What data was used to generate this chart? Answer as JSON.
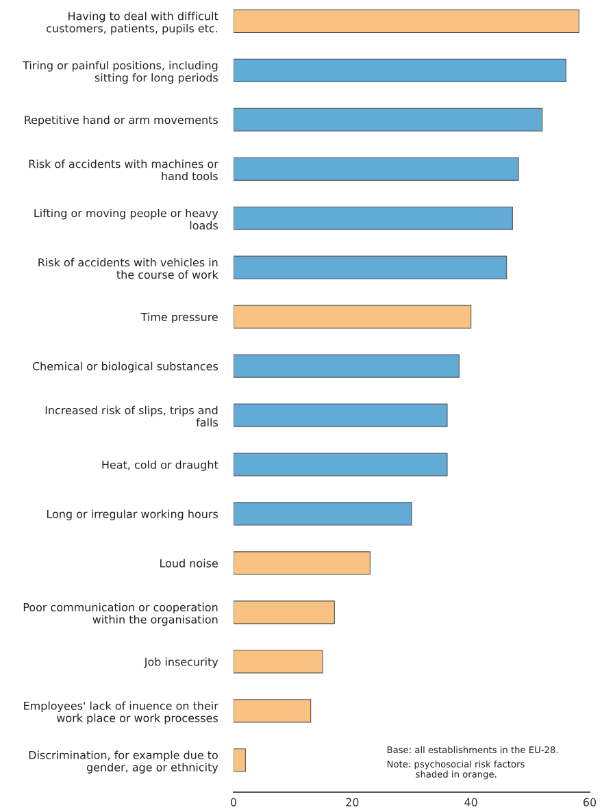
{
  "chart_data": {
    "type": "bar",
    "orientation": "horizontal",
    "categories": [
      "Having to deal with difficult\ncustomers, patients, pupils etc.",
      "Tiring or painful positions, including\nsitting for long periods",
      "Repetitive hand or arm movements",
      "Risk of accidents with machines or\nhand tools",
      "Lifting or moving people or heavy\nloads",
      "Risk of accidents with vehicles in\nthe course of work",
      "Time pressure",
      "Chemical or biological substances",
      "Increased risk of slips, trips and\nfalls",
      "Heat, cold or draught",
      "Long or irregular working hours",
      "Loud noise",
      "Poor communication or cooperation\nwithin the organisation",
      "Job insecurity",
      "Employees' lack of inuence on their\nwork place or work processes",
      "Discrimination, for example due to\ngender, age or ethnicity"
    ],
    "values": [
      58.2,
      56,
      52,
      48,
      47,
      46,
      40,
      38,
      36,
      36,
      30,
      23,
      17,
      15,
      13,
      2
    ],
    "colors": [
      "#f8c382",
      "#62abd7",
      "#62abd7",
      "#62abd7",
      "#62abd7",
      "#62abd7",
      "#f8c382",
      "#62abd7",
      "#62abd7",
      "#62abd7",
      "#62abd7",
      "#f8c382",
      "#f8c382",
      "#f8c382",
      "#f8c382",
      "#f8c382"
    ],
    "xlim": [
      0,
      60
    ],
    "xticks": [
      0,
      20,
      40,
      60
    ],
    "grid": false,
    "legend": false,
    "annotations": [
      "Base: all establishments in the EU-28.",
      "Note: psychosocial risk factors\n          shaded in orange."
    ]
  }
}
